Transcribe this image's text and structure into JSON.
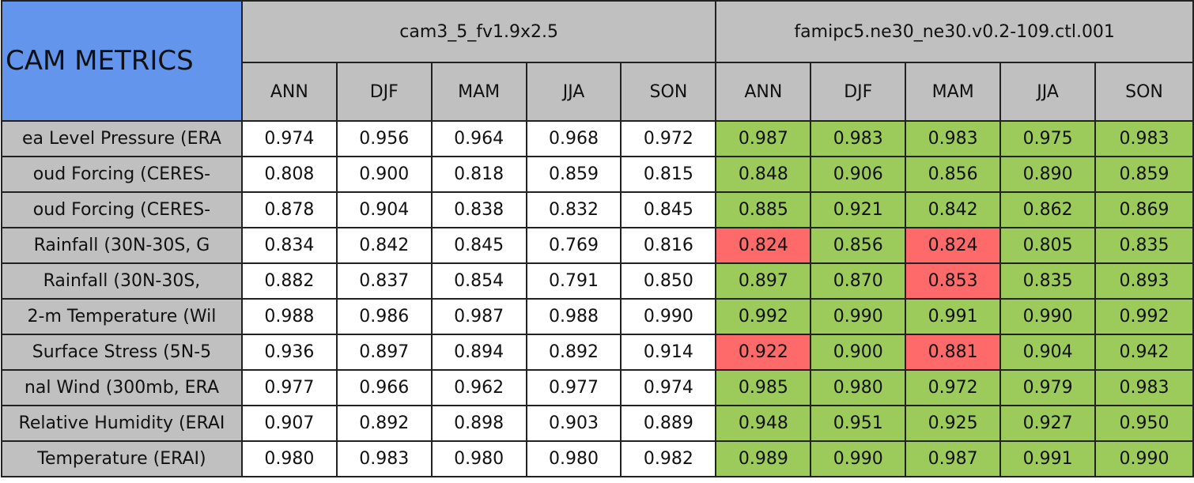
{
  "title": "CAM METRICS",
  "groups": [
    "cam3_5_fv1.9x2.5",
    "famipc5.ne30_ne30.v0.2-109.ctl.001"
  ],
  "seasons": [
    "ANN",
    "DJF",
    "MAM",
    "JJA",
    "SON"
  ],
  "colors": {
    "header": "#c0c0c0",
    "title": "#6495ed",
    "base": "#ffffff",
    "good": "#9dcb5b",
    "bad": "#fe6a6a"
  },
  "rows": [
    {
      "label": "ea Level Pressure (ERA",
      "a": [
        "0.974",
        "0.956",
        "0.964",
        "0.968",
        "0.972"
      ],
      "b": [
        "0.987",
        "0.983",
        "0.983",
        "0.975",
        "0.983"
      ],
      "b_fill": [
        "good",
        "good",
        "good",
        "good",
        "good"
      ]
    },
    {
      "label": "oud Forcing (CERES-",
      "a": [
        "0.808",
        "0.900",
        "0.818",
        "0.859",
        "0.815"
      ],
      "b": [
        "0.848",
        "0.906",
        "0.856",
        "0.890",
        "0.859"
      ],
      "b_fill": [
        "good",
        "good",
        "good",
        "good",
        "good"
      ]
    },
    {
      "label": "oud Forcing (CERES-",
      "a": [
        "0.878",
        "0.904",
        "0.838",
        "0.832",
        "0.845"
      ],
      "b": [
        "0.885",
        "0.921",
        "0.842",
        "0.862",
        "0.869"
      ],
      "b_fill": [
        "good",
        "good",
        "good",
        "good",
        "good"
      ]
    },
    {
      "label": "Rainfall (30N-30S, G",
      "a": [
        "0.834",
        "0.842",
        "0.845",
        "0.769",
        "0.816"
      ],
      "b": [
        "0.824",
        "0.856",
        "0.824",
        "0.805",
        "0.835"
      ],
      "b_fill": [
        "bad",
        "good",
        "bad",
        "good",
        "good"
      ]
    },
    {
      "label": "Rainfall (30N-30S,",
      "a": [
        "0.882",
        "0.837",
        "0.854",
        "0.791",
        "0.850"
      ],
      "b": [
        "0.897",
        "0.870",
        "0.853",
        "0.835",
        "0.893"
      ],
      "b_fill": [
        "good",
        "good",
        "bad",
        "good",
        "good"
      ]
    },
    {
      "label": "2-m Temperature (Wil",
      "a": [
        "0.988",
        "0.986",
        "0.987",
        "0.988",
        "0.990"
      ],
      "b": [
        "0.992",
        "0.990",
        "0.991",
        "0.990",
        "0.992"
      ],
      "b_fill": [
        "good",
        "good",
        "good",
        "good",
        "good"
      ]
    },
    {
      "label": "Surface Stress (5N-5",
      "a": [
        "0.936",
        "0.897",
        "0.894",
        "0.892",
        "0.914"
      ],
      "b": [
        "0.922",
        "0.900",
        "0.881",
        "0.904",
        "0.942"
      ],
      "b_fill": [
        "bad",
        "good",
        "bad",
        "good",
        "good"
      ]
    },
    {
      "label": "nal Wind (300mb, ERA",
      "a": [
        "0.977",
        "0.966",
        "0.962",
        "0.977",
        "0.974"
      ],
      "b": [
        "0.985",
        "0.980",
        "0.972",
        "0.979",
        "0.983"
      ],
      "b_fill": [
        "good",
        "good",
        "good",
        "good",
        "good"
      ]
    },
    {
      "label": "Relative Humidity (ERAI",
      "a": [
        "0.907",
        "0.892",
        "0.898",
        "0.903",
        "0.889"
      ],
      "b": [
        "0.948",
        "0.951",
        "0.925",
        "0.927",
        "0.950"
      ],
      "b_fill": [
        "good",
        "good",
        "good",
        "good",
        "good"
      ]
    },
    {
      "label": "Temperature (ERAI)",
      "a": [
        "0.980",
        "0.983",
        "0.980",
        "0.980",
        "0.982"
      ],
      "b": [
        "0.989",
        "0.990",
        "0.987",
        "0.991",
        "0.990"
      ],
      "b_fill": [
        "good",
        "good",
        "good",
        "good",
        "good"
      ]
    }
  ]
}
